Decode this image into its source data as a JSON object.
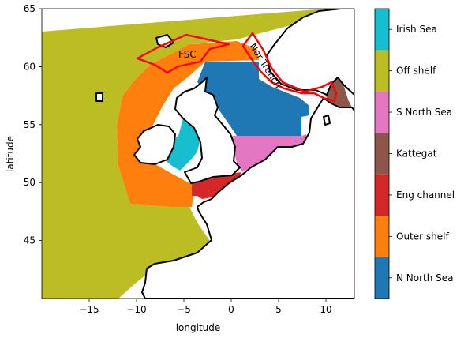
{
  "axes": {
    "xlabel": "longitude",
    "ylabel": "latitude",
    "xlim": [
      -20,
      13
    ],
    "ylim": [
      40,
      65
    ],
    "xticks": [
      {
        "v": -15,
        "label": "−15"
      },
      {
        "v": -10,
        "label": "−10"
      },
      {
        "v": -5,
        "label": "−5"
      },
      {
        "v": 0,
        "label": "0"
      },
      {
        "v": 5,
        "label": "5"
      },
      {
        "v": 10,
        "label": "10"
      }
    ],
    "yticks": [
      {
        "v": 45,
        "label": "45"
      },
      {
        "v": 50,
        "label": "50"
      },
      {
        "v": 55,
        "label": "55"
      },
      {
        "v": 60,
        "label": "60"
      },
      {
        "v": 65,
        "label": "65"
      }
    ]
  },
  "annotations": {
    "fsc": "FSC",
    "nor_trench": "Nor Trench"
  },
  "colorbar": {
    "categories": [
      {
        "label": "Irish Sea",
        "color": "#17becf"
      },
      {
        "label": "Off shelf",
        "color": "#bcbd22"
      },
      {
        "label": "S North Sea",
        "color": "#e377c2"
      },
      {
        "label": "Kattegat",
        "color": "#8c564b"
      },
      {
        "label": "Eng channel",
        "color": "#d62728"
      },
      {
        "label": "Outer shelf",
        "color": "#ff7f0e"
      },
      {
        "label": "N North Sea",
        "color": "#1f77b4"
      }
    ]
  },
  "colors": {
    "land": "#ffffff",
    "coastline": "#000000",
    "outline": "#ff0000"
  }
}
